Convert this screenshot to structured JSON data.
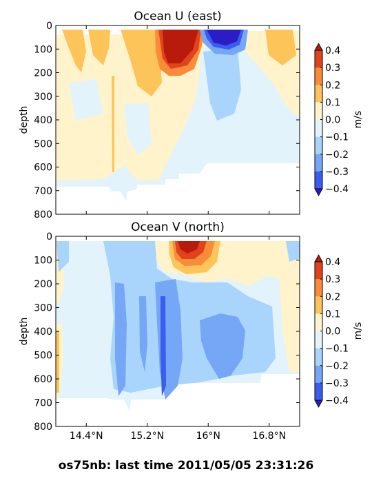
{
  "footer": "os75nb: last time 2011/05/05 23:31:26",
  "colorbar": {
    "unit": "m/s",
    "ticks": [
      "0.4",
      "0.3",
      "0.2",
      "0.1",
      "0.0",
      "−0.1",
      "−0.2",
      "−0.3",
      "−0.4"
    ],
    "colors": [
      "#e0441c",
      "#f98c38",
      "#fdc45a",
      "#fff3cc",
      "#e2f3fb",
      "#a9d4fb",
      "#76a7f6",
      "#3a5cf0"
    ],
    "over_color": "#b81b0c",
    "under_color": "#2b1cc4"
  },
  "chart_data": [
    {
      "type": "heatmap",
      "title": "Ocean U (east)",
      "ylabel": "depth",
      "xlabel": "",
      "ylim": [
        800,
        0
      ],
      "yticks": [
        "0",
        "100",
        "200",
        "300",
        "400",
        "500",
        "600",
        "700",
        "800"
      ],
      "xticks": [],
      "colorbar_label": "m/s",
      "levels": [
        -0.4,
        -0.3,
        -0.2,
        -0.1,
        0.0,
        0.1,
        0.2,
        0.3,
        0.4
      ],
      "grid": false,
      "legend": "colorbar-right",
      "features": {
        "eastward_core_max": "> 0.4 m/s at 0-180 m near 15.5-15.9°N",
        "westward_core_min": "< -0.4 m/s at 0-80 m near 16.1-16.4°N",
        "data_bottom_depth": 680
      }
    },
    {
      "type": "heatmap",
      "title": "Ocean V (north)",
      "ylabel": "depth",
      "xlabel": "",
      "ylim": [
        800,
        0
      ],
      "yticks": [
        "0",
        "100",
        "200",
        "300",
        "400",
        "500",
        "600",
        "700",
        "800"
      ],
      "xticks": [
        "14.4°N",
        "15.2°N",
        "16°N",
        "16.8°N"
      ],
      "colorbar_label": "m/s",
      "levels": [
        -0.4,
        -0.3,
        -0.2,
        -0.1,
        0.0,
        0.1,
        0.2,
        0.3,
        0.4
      ],
      "grid": false,
      "legend": "colorbar-right",
      "features": {
        "northward_core_max": "> 0.4 m/s at 0-100 m near 15.6-15.9°N",
        "southward_band": "-0.2 to -0.3 m/s at 200-650 m, 15.0-16.6°N",
        "data_bottom_depth": 680
      }
    }
  ]
}
